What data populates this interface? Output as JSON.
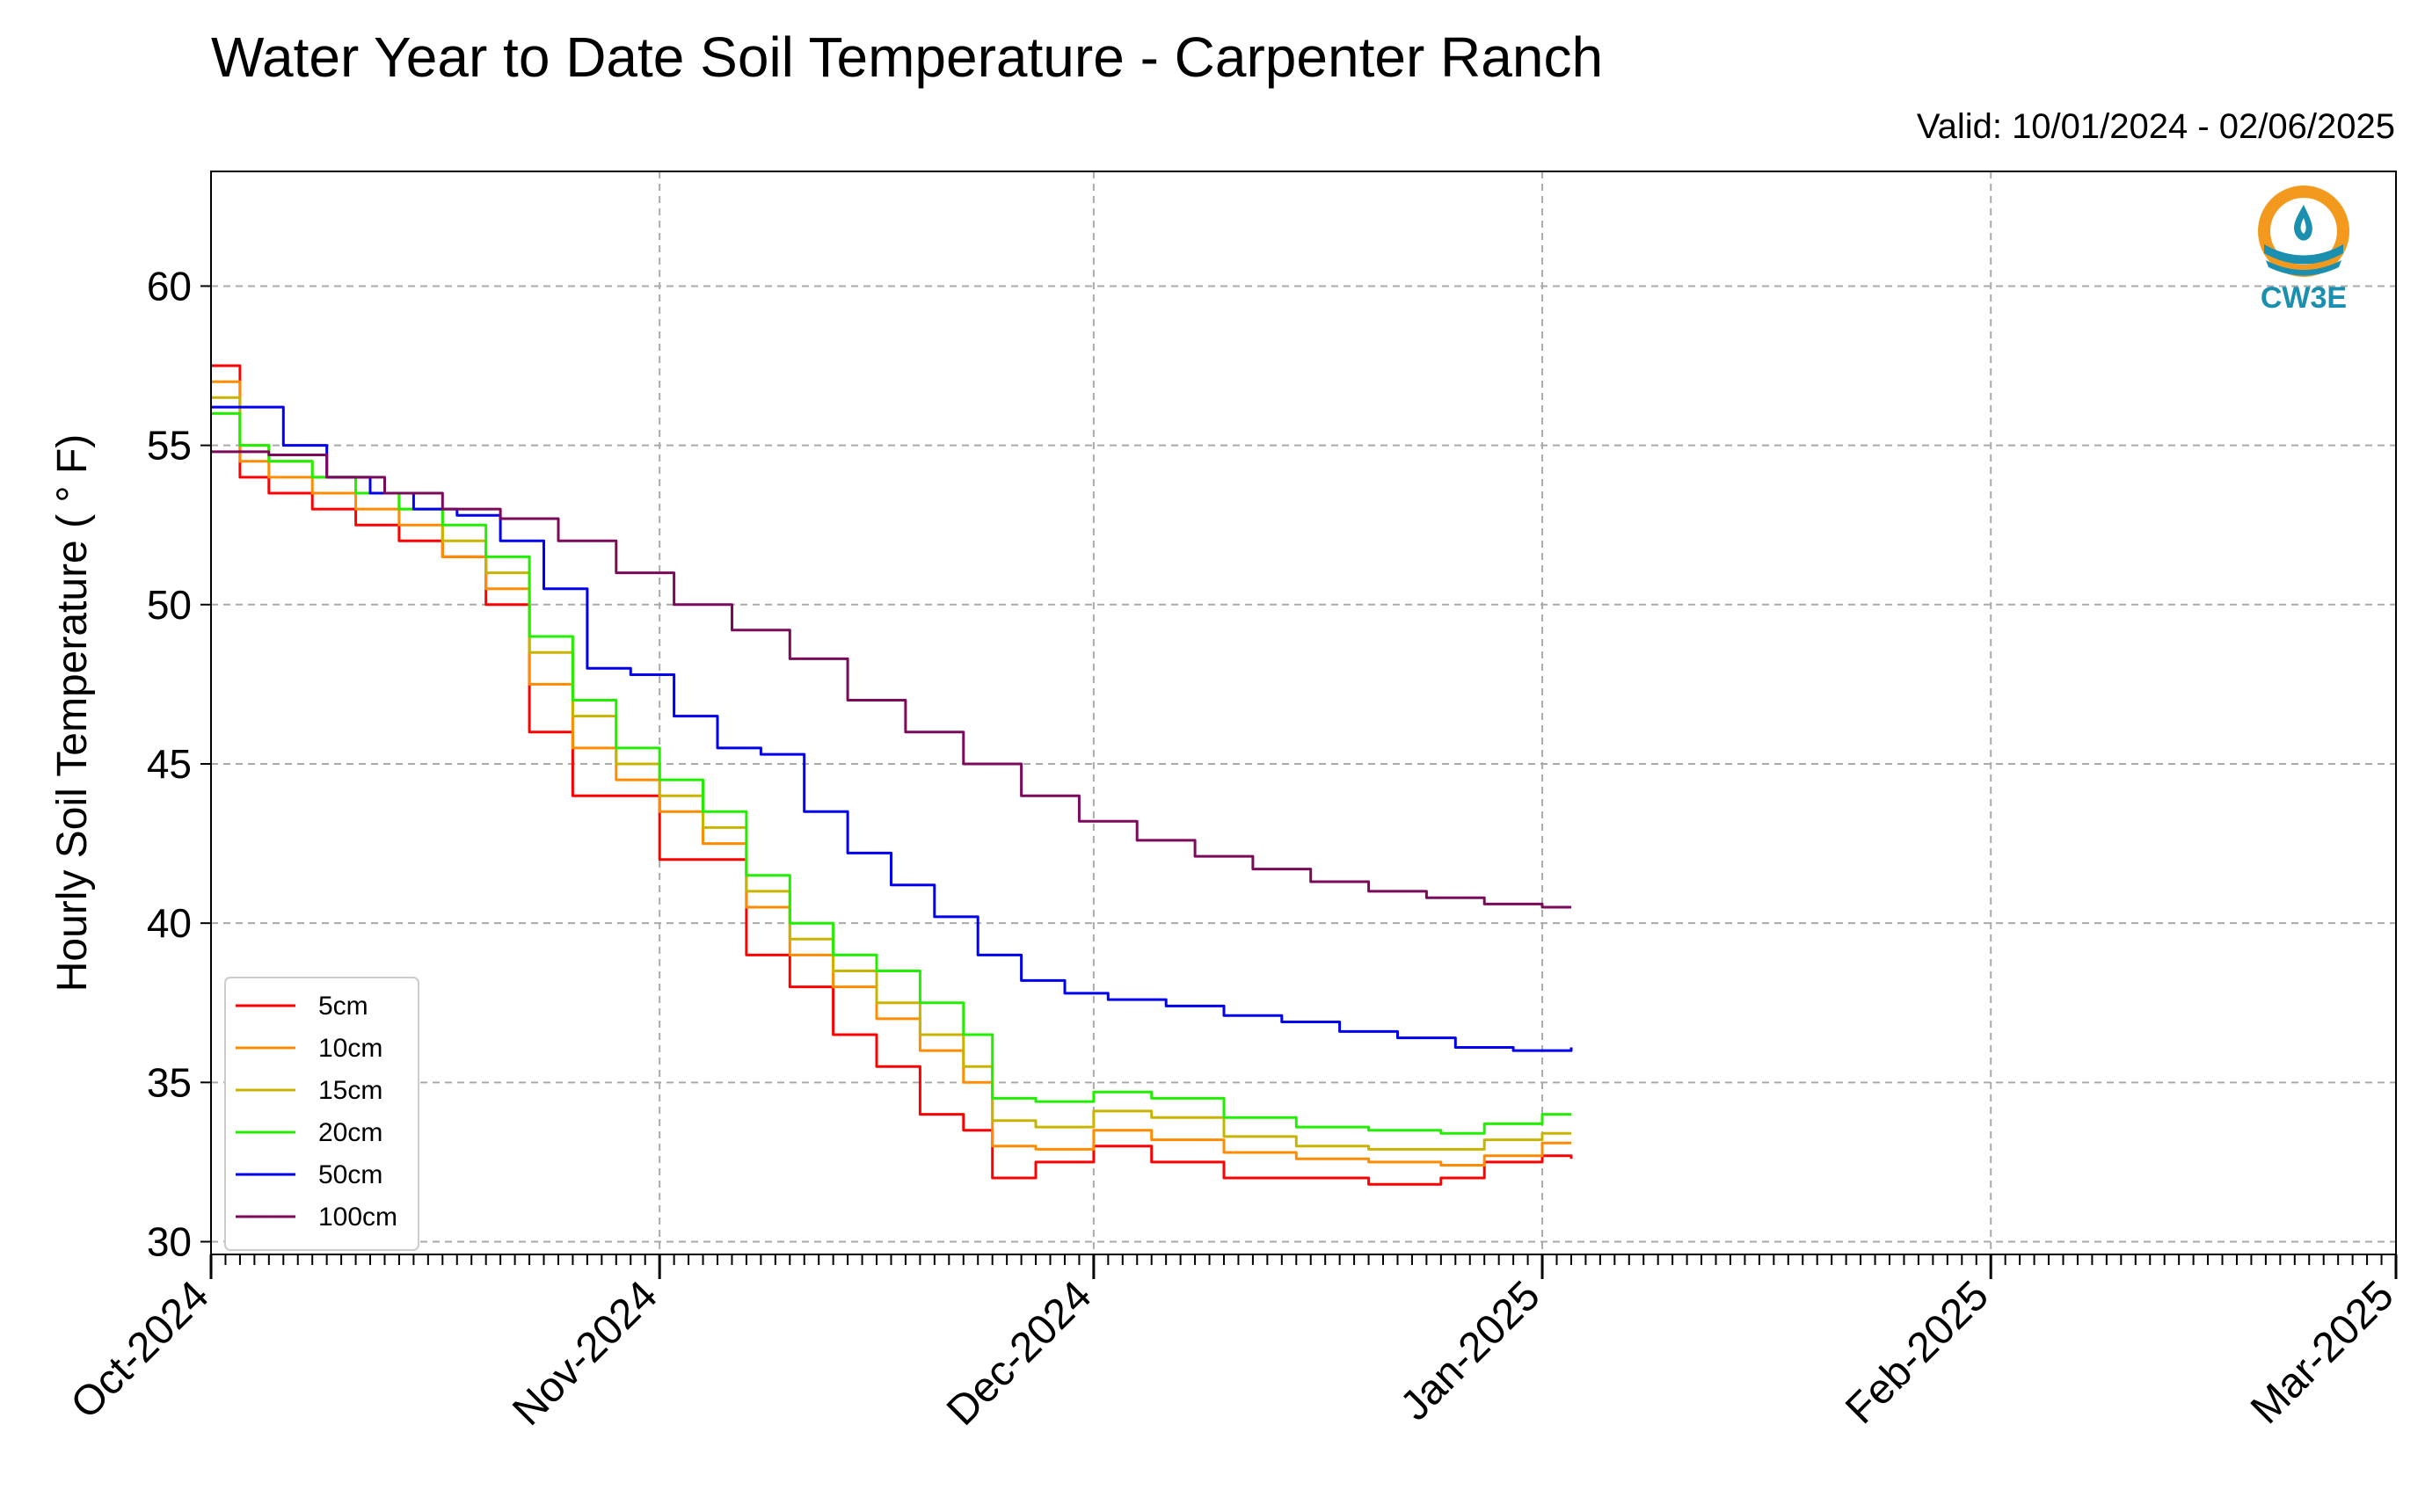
{
  "header": {
    "title": "Water Year to Date Soil Temperature - Carpenter Ranch",
    "valid": "Valid: 10/01/2024 - 02/06/2025"
  },
  "logo": {
    "text": "CW3E",
    "icon": "cw3e-logo-icon",
    "colors": [
      "#f39a1e",
      "#1a8fb0"
    ]
  },
  "chart_data": {
    "type": "line",
    "title": "Water Year to Date Soil Temperature - Carpenter Ranch",
    "ylabel": "Hourly Soil Temperature ( ° F)",
    "xlabel": "",
    "xlim": [
      "2024-10-01",
      "2025-03-01"
    ],
    "ylim": [
      29.6,
      63.6
    ],
    "yticks": [
      30,
      35,
      40,
      45,
      50,
      55,
      60
    ],
    "xticks": [
      {
        "date": "2024-10-01",
        "label": "Oct-2024"
      },
      {
        "date": "2024-11-01",
        "label": "Nov-2024"
      },
      {
        "date": "2024-12-01",
        "label": "Dec-2024"
      },
      {
        "date": "2025-01-01",
        "label": "Jan-2025"
      },
      {
        "date": "2025-02-01",
        "label": "Feb-2025"
      },
      {
        "date": "2025-03-01",
        "label": "Mar-2025"
      }
    ],
    "grid": true,
    "legend_position": "lower-left",
    "series": [
      {
        "name": "5cm",
        "color": "#ff0000",
        "x": [
          "2024-10-01",
          "2024-10-03",
          "2024-10-05",
          "2024-10-08",
          "2024-10-11",
          "2024-10-14",
          "2024-10-17",
          "2024-10-20",
          "2024-10-23",
          "2024-10-26",
          "2024-10-29",
          "2024-11-01",
          "2024-11-04",
          "2024-11-07",
          "2024-11-10",
          "2024-11-13",
          "2024-11-16",
          "2024-11-19",
          "2024-11-22",
          "2024-11-24",
          "2024-11-27",
          "2024-12-01",
          "2024-12-05",
          "2024-12-10",
          "2024-12-15",
          "2024-12-20",
          "2024-12-25",
          "2024-12-28",
          "2025-01-01",
          "2025-01-03"
        ],
        "values": [
          57.5,
          54.0,
          53.5,
          53.0,
          52.5,
          52.0,
          51.5,
          50.0,
          46.0,
          44.0,
          44.0,
          42.0,
          42.0,
          39.0,
          38.0,
          36.5,
          35.5,
          34.0,
          33.5,
          32.0,
          32.5,
          33.0,
          32.5,
          32.0,
          32.0,
          31.8,
          32.0,
          32.5,
          32.7,
          32.6
        ]
      },
      {
        "name": "10cm",
        "color": "#ff8c00",
        "x": [
          "2024-10-01",
          "2024-10-03",
          "2024-10-05",
          "2024-10-08",
          "2024-10-11",
          "2024-10-14",
          "2024-10-17",
          "2024-10-20",
          "2024-10-23",
          "2024-10-26",
          "2024-10-29",
          "2024-11-01",
          "2024-11-04",
          "2024-11-07",
          "2024-11-10",
          "2024-11-13",
          "2024-11-16",
          "2024-11-19",
          "2024-11-22",
          "2024-11-24",
          "2024-11-27",
          "2024-12-01",
          "2024-12-05",
          "2024-12-10",
          "2024-12-15",
          "2024-12-20",
          "2024-12-25",
          "2024-12-28",
          "2025-01-01",
          "2025-01-03"
        ],
        "values": [
          57.0,
          54.5,
          54.0,
          53.5,
          53.0,
          52.5,
          51.5,
          50.5,
          47.5,
          45.5,
          44.5,
          43.5,
          42.5,
          40.5,
          39.0,
          38.0,
          37.0,
          36.0,
          35.0,
          33.0,
          32.9,
          33.5,
          33.2,
          32.8,
          32.6,
          32.5,
          32.4,
          32.7,
          33.1,
          33.1
        ]
      },
      {
        "name": "15cm",
        "color": "#c8b400",
        "x": [
          "2024-10-01",
          "2024-10-03",
          "2024-10-05",
          "2024-10-08",
          "2024-10-11",
          "2024-10-14",
          "2024-10-17",
          "2024-10-20",
          "2024-10-23",
          "2024-10-26",
          "2024-10-29",
          "2024-11-01",
          "2024-11-04",
          "2024-11-07",
          "2024-11-10",
          "2024-11-13",
          "2024-11-16",
          "2024-11-19",
          "2024-11-22",
          "2024-11-24",
          "2024-11-27",
          "2024-12-01",
          "2024-12-05",
          "2024-12-10",
          "2024-12-15",
          "2024-12-20",
          "2024-12-25",
          "2024-12-28",
          "2025-01-01",
          "2025-01-03"
        ],
        "values": [
          56.5,
          55.0,
          54.5,
          54.0,
          53.5,
          53.0,
          52.0,
          51.0,
          48.5,
          46.5,
          45.0,
          44.0,
          43.0,
          41.0,
          39.5,
          38.5,
          37.5,
          36.5,
          35.5,
          33.8,
          33.6,
          34.1,
          33.9,
          33.3,
          33.0,
          32.9,
          32.9,
          33.2,
          33.4,
          33.4
        ]
      },
      {
        "name": "20cm",
        "color": "#22ee00",
        "x": [
          "2024-10-01",
          "2024-10-03",
          "2024-10-05",
          "2024-10-08",
          "2024-10-11",
          "2024-10-14",
          "2024-10-17",
          "2024-10-20",
          "2024-10-23",
          "2024-10-26",
          "2024-10-29",
          "2024-11-01",
          "2024-11-04",
          "2024-11-07",
          "2024-11-10",
          "2024-11-13",
          "2024-11-16",
          "2024-11-19",
          "2024-11-22",
          "2024-11-24",
          "2024-11-27",
          "2024-12-01",
          "2024-12-05",
          "2024-12-10",
          "2024-12-15",
          "2024-12-20",
          "2024-12-25",
          "2024-12-28",
          "2025-01-01",
          "2025-01-03"
        ],
        "values": [
          56.0,
          55.0,
          54.5,
          54.0,
          53.5,
          53.0,
          52.5,
          51.5,
          49.0,
          47.0,
          45.5,
          44.5,
          43.5,
          41.5,
          40.0,
          39.0,
          38.5,
          37.5,
          36.5,
          34.5,
          34.4,
          34.7,
          34.5,
          33.9,
          33.6,
          33.5,
          33.4,
          33.7,
          34.0,
          34.0
        ]
      },
      {
        "name": "50cm",
        "color": "#0000ee",
        "x": [
          "2024-10-01",
          "2024-10-03",
          "2024-10-06",
          "2024-10-09",
          "2024-10-12",
          "2024-10-15",
          "2024-10-18",
          "2024-10-21",
          "2024-10-24",
          "2024-10-27",
          "2024-10-30",
          "2024-11-02",
          "2024-11-05",
          "2024-11-08",
          "2024-11-11",
          "2024-11-14",
          "2024-11-17",
          "2024-11-20",
          "2024-11-23",
          "2024-11-26",
          "2024-11-29",
          "2024-12-02",
          "2024-12-06",
          "2024-12-10",
          "2024-12-14",
          "2024-12-18",
          "2024-12-22",
          "2024-12-26",
          "2024-12-30",
          "2025-01-03"
        ],
        "values": [
          56.2,
          56.2,
          55.0,
          54.0,
          53.5,
          53.0,
          52.8,
          52.0,
          50.5,
          48.0,
          47.8,
          46.5,
          45.5,
          45.3,
          43.5,
          42.2,
          41.2,
          40.2,
          39.0,
          38.2,
          37.8,
          37.6,
          37.4,
          37.1,
          36.9,
          36.6,
          36.4,
          36.1,
          36.0,
          36.1
        ]
      },
      {
        "name": "100cm",
        "color": "#7b0a5a",
        "x": [
          "2024-10-01",
          "2024-10-05",
          "2024-10-09",
          "2024-10-13",
          "2024-10-17",
          "2024-10-21",
          "2024-10-25",
          "2024-10-29",
          "2024-11-02",
          "2024-11-06",
          "2024-11-10",
          "2024-11-14",
          "2024-11-18",
          "2024-11-22",
          "2024-11-26",
          "2024-11-30",
          "2024-12-04",
          "2024-12-08",
          "2024-12-12",
          "2024-12-16",
          "2024-12-20",
          "2024-12-24",
          "2024-12-28",
          "2025-01-01",
          "2025-01-03"
        ],
        "values": [
          54.8,
          54.7,
          54.0,
          53.5,
          53.0,
          52.7,
          52.0,
          51.0,
          50.0,
          49.2,
          48.3,
          47.0,
          46.0,
          45.0,
          44.0,
          43.2,
          42.6,
          42.1,
          41.7,
          41.3,
          41.0,
          40.8,
          40.6,
          40.5,
          40.5
        ]
      }
    ]
  }
}
